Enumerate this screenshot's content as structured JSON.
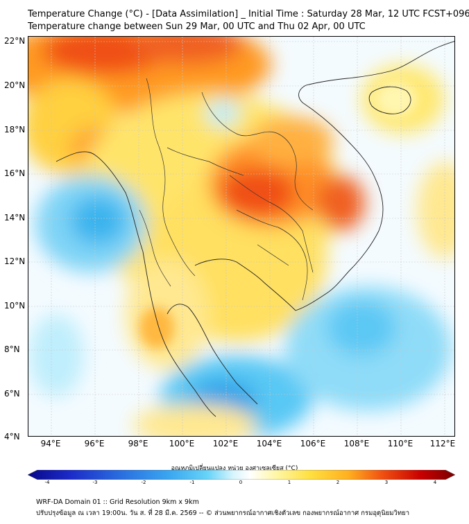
{
  "header": {
    "title_line1": "Temperature Change (°C) - [Data Assimilation] _ Initial Time : Saturday 28 Mar, 12 UTC FCST+096",
    "title_line2": "Temperature change between Sun 29 Mar, 00 UTC and Thu 02 Apr, 00 UTC"
  },
  "map": {
    "lat_labels": [
      "22°N",
      "20°N",
      "18°N",
      "16°N",
      "14°N",
      "12°N",
      "10°N",
      "8°N",
      "6°N",
      "4°N"
    ],
    "lon_labels": [
      "94°E",
      "96°E",
      "98°E",
      "100°E",
      "102°E",
      "104°E",
      "106°E",
      "108°E",
      "110°E",
      "112°E"
    ]
  },
  "colorbar": {
    "title": "อุณหภูมิเปลี่ยนแปลง หน่วย องศาเซลเซียส (°C)",
    "ticks": [
      "-4",
      "-3",
      "-2",
      "-1",
      "0",
      "1",
      "2",
      "3",
      "4"
    ],
    "colors": [
      "#08088a",
      "#1c2bc8",
      "#2a6fe0",
      "#3aa6f0",
      "#66d3f8",
      "#b8ecfa",
      "#ffffff",
      "#fff6a8",
      "#ffe040",
      "#ffc020",
      "#ff8c10",
      "#f04010",
      "#c80000",
      "#7a0000"
    ]
  },
  "footer": {
    "line1": "WRF-DA Domain 01 :: Grid Resolution 9km x 9km",
    "line2": "ปรับปรุงข้อมูล ณ เวลา 19:00น. วัน ส. ที่ 28 มี.ค. 2569 -- © ส่วนพยากรณ์อากาศเชิงตัวเลข กองพยากรณ์อากาศ กรมอุตุนิยมวิทยา"
  }
}
